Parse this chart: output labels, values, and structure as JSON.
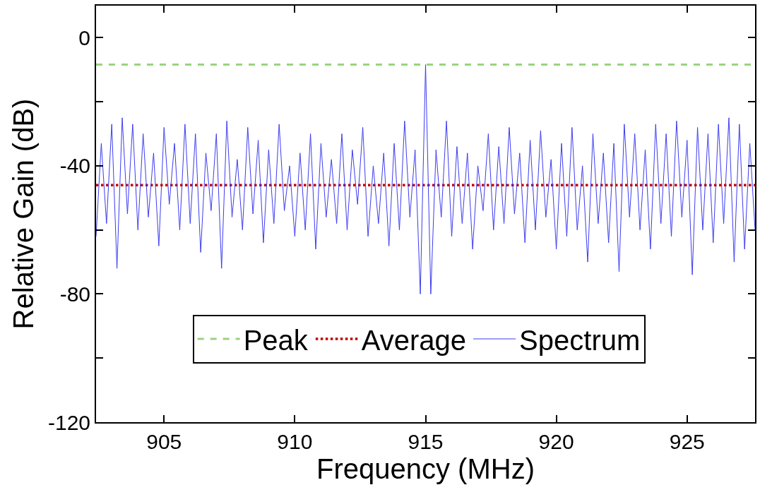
{
  "chart_data": {
    "type": "line",
    "xlabel": "Frequency (MHz)",
    "ylabel": "Relative Gain (dB)",
    "xlim": [
      902.4,
      927.6
    ],
    "xticks": [
      905,
      910,
      915,
      920,
      925
    ],
    "ylim": [
      -120,
      10
    ],
    "yticks": [
      0,
      {
        "value": -20,
        "label": null
      },
      -40,
      {
        "value": -60,
        "label": null
      },
      -80,
      {
        "value": -100,
        "label": null
      },
      -120
    ],
    "legend": "bottom",
    "marker": "none",
    "ref_lines": [
      {
        "axis": "y",
        "value": -8.4,
        "label": "Peak",
        "color": "#99d47f",
        "line_style": "dashed"
      },
      {
        "axis": "y",
        "value": -46,
        "label": "Average",
        "color": "#c00000",
        "line_style": "dotted"
      }
    ],
    "series": [
      {
        "name": "Spectrum",
        "color": "#3c3cf0",
        "line_style": "solid",
        "x": [
          902.4,
          902.6,
          902.8,
          903.0,
          903.2,
          903.4,
          903.6,
          903.8,
          904.0,
          904.2,
          904.4,
          904.6,
          904.8,
          905.0,
          905.2,
          905.4,
          905.6,
          905.8,
          906.0,
          906.2,
          906.4,
          906.6,
          906.8,
          907.0,
          907.2,
          907.4,
          907.6,
          907.8,
          908.0,
          908.2,
          908.4,
          908.6,
          908.8,
          909.0,
          909.2,
          909.4,
          909.6,
          909.8,
          910.0,
          910.2,
          910.4,
          910.6,
          910.8,
          911.0,
          911.2,
          911.4,
          911.6,
          911.8,
          912.0,
          912.2,
          912.4,
          912.6,
          912.8,
          913.0,
          913.2,
          913.4,
          913.6,
          913.8,
          914.0,
          914.2,
          914.4,
          914.6,
          914.8,
          915.0,
          915.2,
          915.4,
          915.6,
          915.8,
          916.0,
          916.2,
          916.4,
          916.6,
          916.8,
          917.0,
          917.2,
          917.4,
          917.6,
          917.8,
          918.0,
          918.2,
          918.4,
          918.6,
          918.8,
          919.0,
          919.2,
          919.4,
          919.6,
          919.8,
          920.0,
          920.2,
          920.4,
          920.6,
          920.8,
          921.0,
          921.2,
          921.4,
          921.6,
          921.8,
          922.0,
          922.2,
          922.4,
          922.6,
          922.8,
          923.0,
          923.2,
          923.4,
          923.6,
          923.8,
          924.0,
          924.2,
          924.4,
          924.6,
          924.8,
          925.0,
          925.2,
          925.4,
          925.6,
          925.8,
          926.0,
          926.2,
          926.4,
          926.6,
          926.8,
          927.0,
          927.2,
          927.4,
          927.6
        ],
        "values": [
          -62,
          -33,
          -58,
          -27,
          -72,
          -25,
          -55,
          -27,
          -60,
          -30,
          -56,
          -36,
          -65,
          -28,
          -52,
          -33,
          -60,
          -27,
          -58,
          -30,
          -67,
          -36,
          -54,
          -30,
          -72,
          -26,
          -56,
          -38,
          -60,
          -28,
          -55,
          -32,
          -64,
          -35,
          -58,
          -27,
          -54,
          -40,
          -62,
          -36,
          -60,
          -30,
          -66,
          -33,
          -56,
          -38,
          -58,
          -30,
          -60,
          -35,
          -52,
          -28,
          -62,
          -40,
          -58,
          -36,
          -65,
          -33,
          -60,
          -26,
          -56,
          -35,
          -80,
          -8.4,
          -80,
          -35,
          -56,
          -26,
          -62,
          -34,
          -58,
          -36,
          -66,
          -40,
          -54,
          -30,
          -60,
          -34,
          -58,
          -28,
          -55,
          -36,
          -64,
          -32,
          -60,
          -29,
          -56,
          -38,
          -66,
          -33,
          -62,
          -28,
          -60,
          -40,
          -70,
          -30,
          -58,
          -36,
          -64,
          -33,
          -73,
          -27,
          -56,
          -30,
          -60,
          -35,
          -66,
          -27,
          -58,
          -30,
          -62,
          -26,
          -56,
          -32,
          -74,
          -28,
          -60,
          -30,
          -64,
          -27,
          -58,
          -25,
          -70,
          -27,
          -66,
          -33,
          -60
        ]
      }
    ]
  }
}
